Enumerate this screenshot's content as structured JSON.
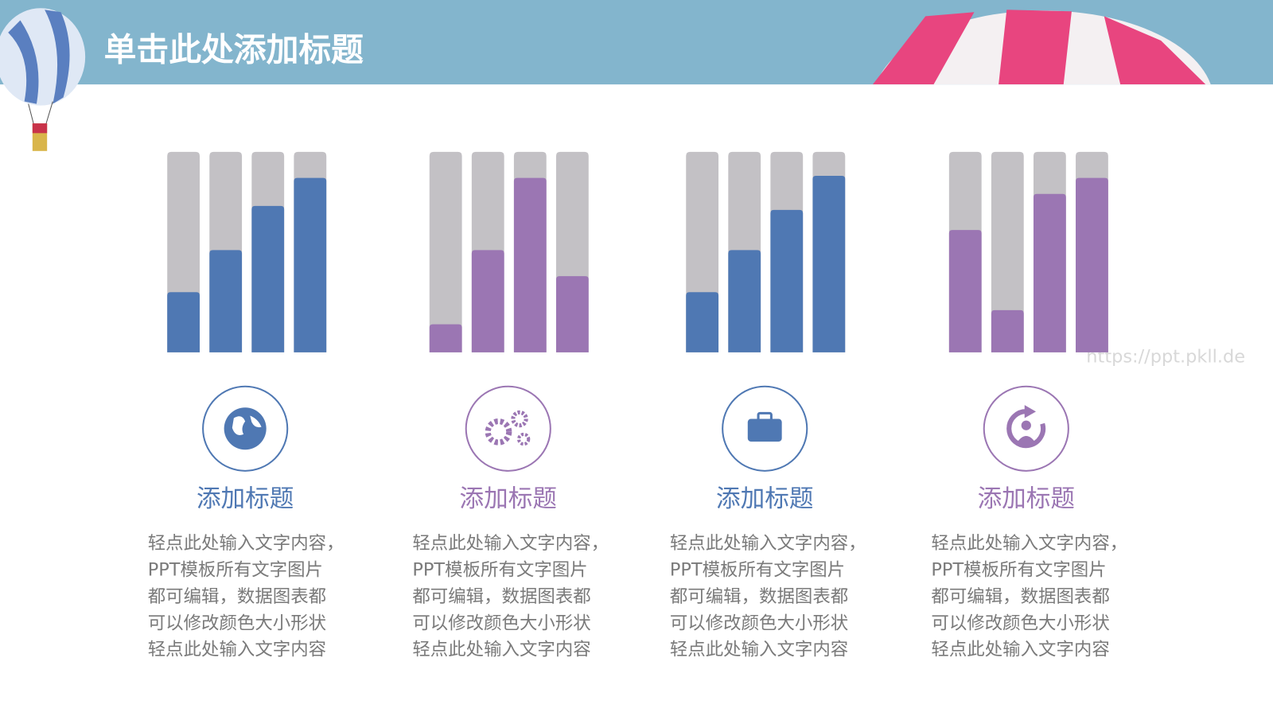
{
  "header": {
    "title": "单击此处添加标题"
  },
  "watermark": "https://ppt.pkll.de",
  "chart_data": [
    {
      "type": "bar",
      "color": "#4f78b3",
      "values": [
        30,
        51,
        73,
        87
      ],
      "ylim": [
        0,
        100
      ],
      "title": "添加标题",
      "text_lines": [
        "轻点此处输入文字内容，",
        "PPT模板所有文字图片",
        "都可编辑，数据图表都",
        "可以修改颜色大小形状",
        "轻点此处输入文字内容"
      ]
    },
    {
      "type": "bar",
      "color": "#9b76b3",
      "values": [
        14,
        51,
        87,
        38
      ],
      "ylim": [
        0,
        100
      ],
      "title": "添加标题",
      "text_lines": [
        "轻点此处输入文字内容，",
        "PPT模板所有文字图片",
        "都可编辑，数据图表都",
        "可以修改颜色大小形状",
        "轻点此处输入文字内容"
      ]
    },
    {
      "type": "bar",
      "color": "#4f78b3",
      "values": [
        30,
        51,
        71,
        88
      ],
      "ylim": [
        0,
        100
      ],
      "title": "添加标题",
      "text_lines": [
        "轻点此处输入文字内容，",
        "PPT模板所有文字图片",
        "都可编辑，数据图表都",
        "可以修改颜色大小形状",
        "轻点此处输入文字内容"
      ]
    },
    {
      "type": "bar",
      "color": "#9b76b3",
      "values": [
        61,
        21,
        79,
        87
      ],
      "ylim": [
        0,
        100
      ],
      "title": "添加标题",
      "text_lines": [
        "轻点此处输入文字内容，",
        "PPT模板所有文字图片",
        "都可编辑，数据图表都",
        "可以修改颜色大小形状",
        "轻点此处输入文字内容"
      ]
    }
  ]
}
